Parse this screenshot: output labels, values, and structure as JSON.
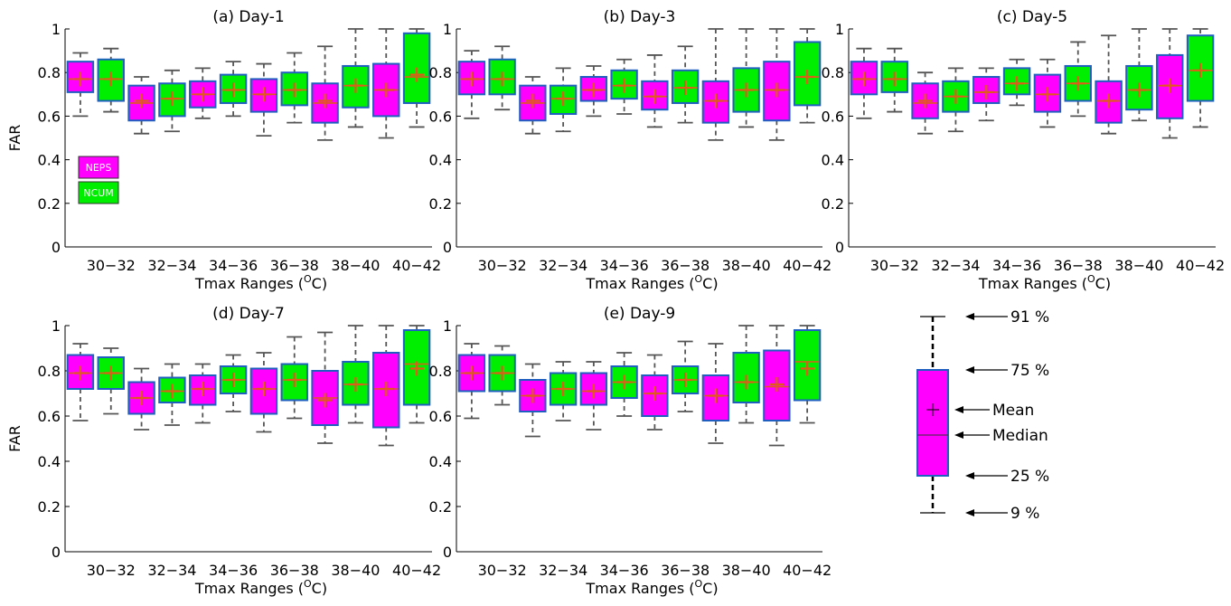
{
  "figure": {
    "colors": {
      "NEPS": "#ff00ff",
      "NCUM": "#00ee00",
      "box_edge": "#1f5fbf",
      "whisker": "#555555",
      "median": "#e05a1a",
      "mean": "#e05a1a"
    },
    "legend": {
      "items": [
        "NEPS",
        "NCUM"
      ],
      "placement": "top-left of panel (a)"
    },
    "key": {
      "labels": [
        "91 %",
        "75 %",
        "Mean",
        "Median",
        "25 %",
        "9 %"
      ],
      "values": {
        "p91": 0.91,
        "p75": 0.75,
        "mean": 0.57,
        "median": 0.49,
        "p25": 0.25,
        "p9": 0.09
      }
    }
  },
  "chart_data": [
    {
      "type": "box",
      "title": "(a) Day-1",
      "xlabel": "Tmax Ranges (",
      "xlabel_sup": "O",
      "xlabel_tail": "C)",
      "ylabel": "FAR",
      "ylim": [
        0,
        1
      ],
      "yticks": [
        "0",
        "0.2",
        "0.4",
        "0.6",
        "0.8",
        "1"
      ],
      "categories": [
        "30-32",
        "32-34",
        "34-36",
        "36-38",
        "38-40",
        "40-42"
      ],
      "series": [
        {
          "name": "NEPS",
          "boxes": [
            {
              "p9": 0.6,
              "p25": 0.71,
              "median": 0.77,
              "mean": 0.77,
              "p75": 0.85,
              "p91": 0.89
            },
            {
              "p9": 0.52,
              "p25": 0.58,
              "median": 0.66,
              "mean": 0.67,
              "p75": 0.74,
              "p91": 0.78
            },
            {
              "p9": 0.59,
              "p25": 0.64,
              "median": 0.7,
              "mean": 0.7,
              "p75": 0.76,
              "p91": 0.82
            },
            {
              "p9": 0.51,
              "p25": 0.62,
              "median": 0.7,
              "mean": 0.7,
              "p75": 0.77,
              "p91": 0.84
            },
            {
              "p9": 0.49,
              "p25": 0.57,
              "median": 0.66,
              "mean": 0.67,
              "p75": 0.75,
              "p91": 0.92
            },
            {
              "p9": 0.5,
              "p25": 0.6,
              "median": 0.72,
              "mean": 0.72,
              "p75": 0.84,
              "p91": 1.0
            }
          ]
        },
        {
          "name": "NCUM",
          "boxes": [
            {
              "p9": 0.62,
              "p25": 0.67,
              "median": 0.77,
              "mean": 0.77,
              "p75": 0.86,
              "p91": 0.91
            },
            {
              "p9": 0.53,
              "p25": 0.6,
              "median": 0.68,
              "mean": 0.68,
              "p75": 0.75,
              "p91": 0.81
            },
            {
              "p9": 0.6,
              "p25": 0.66,
              "median": 0.72,
              "mean": 0.72,
              "p75": 0.79,
              "p91": 0.85
            },
            {
              "p9": 0.57,
              "p25": 0.65,
              "median": 0.72,
              "mean": 0.72,
              "p75": 0.8,
              "p91": 0.89
            },
            {
              "p9": 0.55,
              "p25": 0.64,
              "median": 0.74,
              "mean": 0.74,
              "p75": 0.83,
              "p91": 1.0
            },
            {
              "p9": 0.55,
              "p25": 0.66,
              "median": 0.78,
              "mean": 0.79,
              "p75": 0.98,
              "p91": 1.0
            }
          ]
        }
      ]
    },
    {
      "type": "box",
      "title": "(b) Day-3",
      "xlabel": "Tmax Ranges (",
      "xlabel_sup": "O",
      "xlabel_tail": "C)",
      "ylabel": "",
      "ylim": [
        0,
        1
      ],
      "yticks": [
        "0",
        "0.2",
        "0.4",
        "0.6",
        "0.8",
        "1"
      ],
      "categories": [
        "30-32",
        "32-34",
        "34-36",
        "36-38",
        "38-40",
        "40-42"
      ],
      "series": [
        {
          "name": "NEPS",
          "boxes": [
            {
              "p9": 0.59,
              "p25": 0.7,
              "median": 0.77,
              "mean": 0.77,
              "p75": 0.85,
              "p91": 0.9
            },
            {
              "p9": 0.52,
              "p25": 0.58,
              "median": 0.66,
              "mean": 0.67,
              "p75": 0.74,
              "p91": 0.78
            },
            {
              "p9": 0.6,
              "p25": 0.67,
              "median": 0.72,
              "mean": 0.72,
              "p75": 0.78,
              "p91": 0.83
            },
            {
              "p9": 0.55,
              "p25": 0.63,
              "median": 0.69,
              "mean": 0.69,
              "p75": 0.76,
              "p91": 0.88
            },
            {
              "p9": 0.49,
              "p25": 0.57,
              "median": 0.67,
              "mean": 0.67,
              "p75": 0.76,
              "p91": 1.0
            },
            {
              "p9": 0.49,
              "p25": 0.58,
              "median": 0.72,
              "mean": 0.72,
              "p75": 0.85,
              "p91": 1.0
            }
          ]
        },
        {
          "name": "NCUM",
          "boxes": [
            {
              "p9": 0.63,
              "p25": 0.7,
              "median": 0.77,
              "mean": 0.77,
              "p75": 0.86,
              "p91": 0.92
            },
            {
              "p9": 0.53,
              "p25": 0.61,
              "median": 0.68,
              "mean": 0.68,
              "p75": 0.74,
              "p91": 0.82
            },
            {
              "p9": 0.61,
              "p25": 0.68,
              "median": 0.74,
              "mean": 0.74,
              "p75": 0.81,
              "p91": 0.86
            },
            {
              "p9": 0.57,
              "p25": 0.66,
              "median": 0.73,
              "mean": 0.73,
              "p75": 0.81,
              "p91": 0.92
            },
            {
              "p9": 0.55,
              "p25": 0.62,
              "median": 0.72,
              "mean": 0.72,
              "p75": 0.82,
              "p91": 1.0
            },
            {
              "p9": 0.57,
              "p25": 0.65,
              "median": 0.78,
              "mean": 0.78,
              "p75": 0.94,
              "p91": 1.0
            }
          ]
        }
      ]
    },
    {
      "type": "box",
      "title": "(c) Day-5",
      "xlabel": "Tmax Ranges (",
      "xlabel_sup": "O",
      "xlabel_tail": "C)",
      "ylabel": "",
      "ylim": [
        0,
        1
      ],
      "yticks": [
        "0",
        "0.2",
        "0.4",
        "0.6",
        "0.8",
        "1"
      ],
      "categories": [
        "30-32",
        "32-34",
        "34-36",
        "36-38",
        "38-40",
        "40-42"
      ],
      "series": [
        {
          "name": "NEPS",
          "boxes": [
            {
              "p9": 0.59,
              "p25": 0.7,
              "median": 0.77,
              "mean": 0.77,
              "p75": 0.85,
              "p91": 0.91
            },
            {
              "p9": 0.52,
              "p25": 0.59,
              "median": 0.66,
              "mean": 0.67,
              "p75": 0.75,
              "p91": 0.8
            },
            {
              "p9": 0.58,
              "p25": 0.66,
              "median": 0.71,
              "mean": 0.71,
              "p75": 0.78,
              "p91": 0.82
            },
            {
              "p9": 0.55,
              "p25": 0.62,
              "median": 0.7,
              "mean": 0.7,
              "p75": 0.79,
              "p91": 0.86
            },
            {
              "p9": 0.52,
              "p25": 0.57,
              "median": 0.67,
              "mean": 0.67,
              "p75": 0.76,
              "p91": 0.97
            },
            {
              "p9": 0.5,
              "p25": 0.59,
              "median": 0.74,
              "mean": 0.74,
              "p75": 0.88,
              "p91": 1.0
            }
          ]
        },
        {
          "name": "NCUM",
          "boxes": [
            {
              "p9": 0.62,
              "p25": 0.71,
              "median": 0.77,
              "mean": 0.77,
              "p75": 0.85,
              "p91": 0.91
            },
            {
              "p9": 0.53,
              "p25": 0.62,
              "median": 0.69,
              "mean": 0.69,
              "p75": 0.76,
              "p91": 0.82
            },
            {
              "p9": 0.65,
              "p25": 0.7,
              "median": 0.75,
              "mean": 0.75,
              "p75": 0.82,
              "p91": 0.86
            },
            {
              "p9": 0.6,
              "p25": 0.67,
              "median": 0.75,
              "mean": 0.75,
              "p75": 0.83,
              "p91": 0.94
            },
            {
              "p9": 0.58,
              "p25": 0.63,
              "median": 0.72,
              "mean": 0.72,
              "p75": 0.83,
              "p91": 1.0
            },
            {
              "p9": 0.55,
              "p25": 0.67,
              "median": 0.81,
              "mean": 0.81,
              "p75": 0.97,
              "p91": 1.0
            }
          ]
        }
      ]
    },
    {
      "type": "box",
      "title": "(d) Day-7",
      "xlabel": "Tmax Ranges (",
      "xlabel_sup": "O",
      "xlabel_tail": "C)",
      "ylabel": "FAR",
      "ylim": [
        0,
        1
      ],
      "yticks": [
        "0",
        "0.2",
        "0.4",
        "0.6",
        "0.8",
        "1"
      ],
      "categories": [
        "30-32",
        "32-34",
        "34-36",
        "36-38",
        "38-40",
        "40-42"
      ],
      "series": [
        {
          "name": "NEPS",
          "boxes": [
            {
              "p9": 0.58,
              "p25": 0.72,
              "median": 0.79,
              "mean": 0.79,
              "p75": 0.87,
              "p91": 0.92
            },
            {
              "p9": 0.54,
              "p25": 0.61,
              "median": 0.68,
              "mean": 0.68,
              "p75": 0.75,
              "p91": 0.81
            },
            {
              "p9": 0.57,
              "p25": 0.65,
              "median": 0.72,
              "mean": 0.72,
              "p75": 0.78,
              "p91": 0.83
            },
            {
              "p9": 0.53,
              "p25": 0.61,
              "median": 0.72,
              "mean": 0.72,
              "p75": 0.81,
              "p91": 0.88
            },
            {
              "p9": 0.48,
              "p25": 0.56,
              "median": 0.68,
              "mean": 0.67,
              "p75": 0.8,
              "p91": 0.97
            },
            {
              "p9": 0.47,
              "p25": 0.55,
              "median": 0.72,
              "mean": 0.72,
              "p75": 0.88,
              "p91": 1.0
            }
          ]
        },
        {
          "name": "NCUM",
          "boxes": [
            {
              "p9": 0.61,
              "p25": 0.72,
              "median": 0.79,
              "mean": 0.79,
              "p75": 0.86,
              "p91": 0.9
            },
            {
              "p9": 0.56,
              "p25": 0.66,
              "median": 0.71,
              "mean": 0.71,
              "p75": 0.77,
              "p91": 0.83
            },
            {
              "p9": 0.62,
              "p25": 0.7,
              "median": 0.76,
              "mean": 0.76,
              "p75": 0.82,
              "p91": 0.87
            },
            {
              "p9": 0.59,
              "p25": 0.67,
              "median": 0.76,
              "mean": 0.76,
              "p75": 0.83,
              "p91": 0.95
            },
            {
              "p9": 0.57,
              "p25": 0.65,
              "median": 0.74,
              "mean": 0.74,
              "p75": 0.84,
              "p91": 1.0
            },
            {
              "p9": 0.57,
              "p25": 0.65,
              "median": 0.83,
              "mean": 0.81,
              "p75": 0.98,
              "p91": 1.0
            }
          ]
        }
      ]
    },
    {
      "type": "box",
      "title": "(e) Day-9",
      "xlabel": "Tmax Ranges (",
      "xlabel_sup": "O",
      "xlabel_tail": "C)",
      "ylabel": "",
      "ylim": [
        0,
        1
      ],
      "yticks": [
        "0",
        "0.2",
        "0.4",
        "0.6",
        "0.8",
        "1"
      ],
      "categories": [
        "30-32",
        "32-34",
        "34-36",
        "36-38",
        "38-40",
        "40-42"
      ],
      "series": [
        {
          "name": "NEPS",
          "boxes": [
            {
              "p9": 0.59,
              "p25": 0.71,
              "median": 0.79,
              "mean": 0.79,
              "p75": 0.87,
              "p91": 0.92
            },
            {
              "p9": 0.51,
              "p25": 0.62,
              "median": 0.69,
              "mean": 0.69,
              "p75": 0.76,
              "p91": 0.83
            },
            {
              "p9": 0.54,
              "p25": 0.65,
              "median": 0.71,
              "mean": 0.71,
              "p75": 0.79,
              "p91": 0.84
            },
            {
              "p9": 0.54,
              "p25": 0.6,
              "median": 0.7,
              "mean": 0.7,
              "p75": 0.78,
              "p91": 0.87
            },
            {
              "p9": 0.48,
              "p25": 0.58,
              "median": 0.69,
              "mean": 0.69,
              "p75": 0.78,
              "p91": 0.92
            },
            {
              "p9": 0.47,
              "p25": 0.58,
              "median": 0.73,
              "mean": 0.74,
              "p75": 0.89,
              "p91": 1.0
            }
          ]
        },
        {
          "name": "NCUM",
          "boxes": [
            {
              "p9": 0.65,
              "p25": 0.71,
              "median": 0.79,
              "mean": 0.79,
              "p75": 0.87,
              "p91": 0.91
            },
            {
              "p9": 0.58,
              "p25": 0.65,
              "median": 0.72,
              "mean": 0.72,
              "p75": 0.79,
              "p91": 0.84
            },
            {
              "p9": 0.6,
              "p25": 0.68,
              "median": 0.75,
              "mean": 0.75,
              "p75": 0.82,
              "p91": 0.88
            },
            {
              "p9": 0.62,
              "p25": 0.7,
              "median": 0.76,
              "mean": 0.76,
              "p75": 0.82,
              "p91": 0.93
            },
            {
              "p9": 0.57,
              "p25": 0.66,
              "median": 0.75,
              "mean": 0.75,
              "p75": 0.88,
              "p91": 1.0
            },
            {
              "p9": 0.57,
              "p25": 0.67,
              "median": 0.84,
              "mean": 0.81,
              "p75": 0.98,
              "p91": 1.0
            }
          ]
        }
      ]
    }
  ]
}
